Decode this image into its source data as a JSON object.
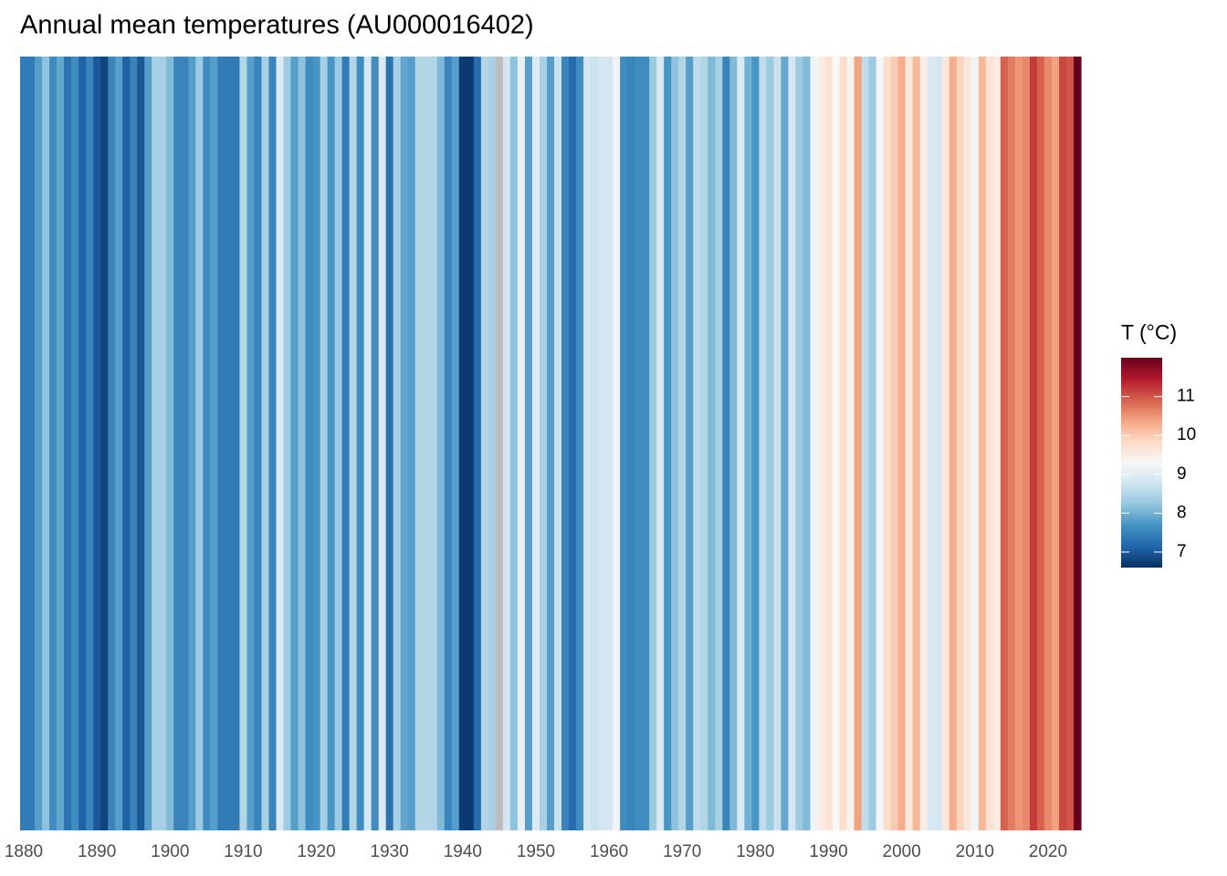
{
  "chart_data": {
    "type": "stripes",
    "title": "Annual mean temperatures (AU000016402)",
    "x": [
      1880,
      1881,
      1882,
      1883,
      1884,
      1885,
      1886,
      1887,
      1888,
      1889,
      1890,
      1891,
      1892,
      1893,
      1894,
      1895,
      1896,
      1897,
      1898,
      1899,
      1900,
      1901,
      1902,
      1903,
      1904,
      1905,
      1906,
      1907,
      1908,
      1909,
      1910,
      1911,
      1912,
      1913,
      1914,
      1915,
      1916,
      1917,
      1918,
      1919,
      1920,
      1921,
      1922,
      1923,
      1924,
      1925,
      1926,
      1927,
      1928,
      1929,
      1930,
      1931,
      1932,
      1933,
      1934,
      1935,
      1936,
      1937,
      1938,
      1939,
      1940,
      1941,
      1942,
      1943,
      1944,
      1945,
      1946,
      1947,
      1948,
      1949,
      1950,
      1951,
      1952,
      1953,
      1954,
      1955,
      1956,
      1957,
      1958,
      1959,
      1960,
      1961,
      1962,
      1963,
      1964,
      1965,
      1966,
      1967,
      1968,
      1969,
      1970,
      1971,
      1972,
      1973,
      1974,
      1975,
      1976,
      1977,
      1978,
      1979,
      1980,
      1981,
      1982,
      1983,
      1984,
      1985,
      1986,
      1987,
      1988,
      1989,
      1990,
      1991,
      1992,
      1993,
      1994,
      1995,
      1996,
      1997,
      1998,
      1999,
      2000,
      2001,
      2002,
      2003,
      2004,
      2005,
      2006,
      2007,
      2008,
      2009,
      2010,
      2011,
      2012,
      2013,
      2014,
      2015,
      2016,
      2017,
      2018,
      2019,
      2020,
      2021,
      2022,
      2023,
      2024
    ],
    "values": [
      7.4,
      7.4,
      7.8,
      8.2,
      7.6,
      7.9,
      7.3,
      7.6,
      7.1,
      7.5,
      7.0,
      6.8,
      7.5,
      7.8,
      7.1,
      7.5,
      7.0,
      7.8,
      8.4,
      8.4,
      8.1,
      7.5,
      7.5,
      7.8,
      8.3,
      7.6,
      7.8,
      7.4,
      7.4,
      7.4,
      8.5,
      7.8,
      7.5,
      8.4,
      7.5,
      8.9,
      8.3,
      7.8,
      8.2,
      7.6,
      7.7,
      8.4,
      7.7,
      8.3,
      7.4,
      8.5,
      7.6,
      8.8,
      7.6,
      8.9,
      7.3,
      8.4,
      7.9,
      7.8,
      8.5,
      8.5,
      8.5,
      8.1,
      7.5,
      7.8,
      6.7,
      6.7,
      7.2,
      8.5,
      8.4,
      null,
      8.8,
      8.2,
      9.1,
      7.8,
      8.9,
      8.4,
      7.8,
      8.7,
      7.5,
      7.2,
      7.6,
      8.8,
      8.7,
      8.8,
      8.8,
      9.2,
      7.6,
      7.5,
      7.6,
      7.6,
      8.3,
      8.9,
      7.7,
      8.2,
      8.5,
      7.8,
      8.6,
      8.5,
      8.1,
      8.4,
      7.5,
      8.1,
      8.9,
      8.0,
      7.7,
      8.6,
      8.3,
      8.7,
      7.9,
      8.8,
      8.3,
      8.1,
      9.2,
      9.5,
      9.7,
      9.3,
      9.8,
      9.4,
      10.4,
      8.6,
      8.3,
      9.3,
      9.8,
      10.0,
      10.3,
      9.6,
      10.2,
      9.5,
      8.9,
      8.8,
      9.6,
      10.3,
      9.9,
      9.6,
      9.2,
      10.2,
      9.7,
      9.5,
      10.9,
      10.7,
      10.5,
      10.6,
      11.2,
      10.9,
      10.6,
      10.4,
      11.1,
      11.0,
      12.0
    ],
    "xlim": [
      1879.5,
      2024.5
    ],
    "xticks": [
      1880,
      1890,
      1900,
      1910,
      1920,
      1930,
      1940,
      1950,
      1960,
      1970,
      1980,
      1990,
      2000,
      2010,
      2020
    ],
    "colors": [
      "#053061",
      "#2166ac",
      "#4393c3",
      "#92c5de",
      "#d1e5f0",
      "#f7f7f7",
      "#fddbc7",
      "#f4a582",
      "#d6604d",
      "#b2182b",
      "#67001f"
    ],
    "na_color": "#bdbdbd",
    "colorbar": {
      "title": "T (°C)",
      "limits": [
        6.6,
        12.0
      ],
      "ticks": [
        7,
        8,
        9,
        10,
        11
      ]
    }
  }
}
